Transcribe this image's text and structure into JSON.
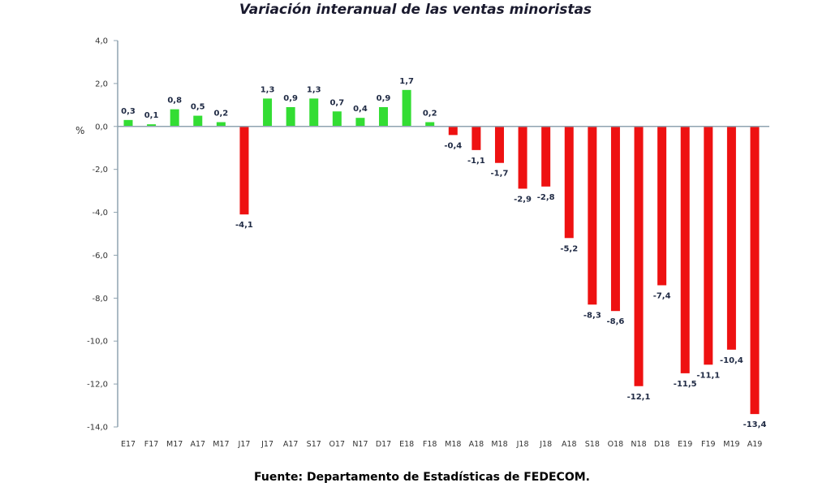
{
  "chart_data": {
    "type": "bar",
    "title": "Variación interanual de las ventas minoristas",
    "xlabel": "",
    "ylabel": "%",
    "ylim": [
      -14,
      4
    ],
    "yticks": [
      4,
      2,
      0,
      -2,
      -4,
      -6,
      -8,
      -10,
      -12,
      -14
    ],
    "ytick_labels": [
      "4,0",
      "2,0",
      "0,0",
      "-2,0",
      "-4,0",
      "-6,0",
      "-8,0",
      "-10,0",
      "-12,0",
      "-14,0"
    ],
    "grid": false,
    "categories": [
      "E17",
      "F17",
      "M17",
      "A17",
      "M17",
      "J17",
      "J17",
      "A17",
      "S17",
      "O17",
      "N17",
      "D17",
      "E18",
      "F18",
      "M18",
      "A18",
      "M18",
      "J18",
      "J18",
      "A18",
      "S18",
      "O18",
      "N18",
      "D18",
      "E19",
      "F19",
      "M19",
      "A19"
    ],
    "values": [
      0.3,
      0.1,
      0.8,
      0.5,
      0.2,
      -4.1,
      1.3,
      0.9,
      1.3,
      0.7,
      0.4,
      0.9,
      1.7,
      0.2,
      -0.4,
      -1.1,
      -1.7,
      -2.9,
      -2.8,
      -5.2,
      -8.3,
      -8.6,
      -12.1,
      -7.4,
      -11.5,
      -11.1,
      -10.4,
      -13.4
    ],
    "data_labels": [
      "0,3",
      "0,1",
      "0,8",
      "0,5",
      "0,2",
      "-4,1",
      "1,3",
      "0,9",
      "1,3",
      "0,7",
      "0,4",
      "0,9",
      "1,7",
      "0,2",
      "-0,4",
      "-1,1",
      "-1,7",
      "-2,9",
      "-2,8",
      "-5,2",
      "-8,3",
      "-8,6",
      "-12,1",
      "-7,4",
      "-11,5",
      "-11,1",
      "-10,4",
      "-13,4"
    ],
    "colors": {
      "positive": "#33dd33",
      "negative": "#ee1111",
      "axis": "#8fa3b0"
    }
  },
  "footer": {
    "source": "Fuente: Departamento de Estadísticas de FEDECOM."
  }
}
